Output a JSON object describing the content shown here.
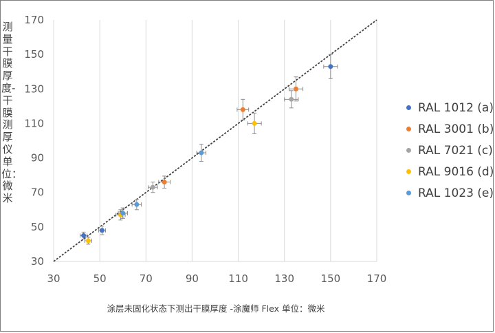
{
  "chart_data": {
    "type": "scatter",
    "title": "",
    "xlabel": "涂层未固化状态下测出干膜厚度 -涂魔师 Flex  单位：微米",
    "ylabel": "测量干膜厚度-干膜测厚仪 单位：微米",
    "xlim": [
      30,
      170
    ],
    "ylim": [
      30,
      170
    ],
    "xticks": [
      30,
      50,
      70,
      90,
      110,
      130,
      150,
      170
    ],
    "yticks": [
      30,
      50,
      70,
      90,
      110,
      130,
      150,
      170
    ],
    "grid": "vertical",
    "legend_position": "right",
    "reference_line": {
      "style": "dashed",
      "from": [
        30,
        30
      ],
      "to": [
        170,
        170
      ]
    },
    "series": [
      {
        "name": "RAL 1012 (a)",
        "color": "#4472c4",
        "points": [
          {
            "x": 43,
            "y": 45,
            "xerr": 1.5,
            "yerr": 2
          },
          {
            "x": 51,
            "y": 48,
            "xerr": 1.5,
            "yerr": 2.5
          },
          {
            "x": 150,
            "y": 143,
            "xerr": 3,
            "yerr": 7
          }
        ]
      },
      {
        "name": "RAL 3001 (b)",
        "color": "#ed7d31",
        "points": [
          {
            "x": 78,
            "y": 76,
            "xerr": 2.5,
            "yerr": 3.5
          },
          {
            "x": 112,
            "y": 118,
            "xerr": 2.5,
            "yerr": 6
          },
          {
            "x": 135,
            "y": 130,
            "xerr": 3,
            "yerr": 7
          }
        ]
      },
      {
        "name": "RAL 7021 (c)",
        "color": "#a5a5a5",
        "points": [
          {
            "x": 60,
            "y": 58,
            "xerr": 2,
            "yerr": 3
          },
          {
            "x": 73,
            "y": 73,
            "xerr": 2,
            "yerr": 3
          },
          {
            "x": 133,
            "y": 124,
            "xerr": 3,
            "yerr": 5
          }
        ]
      },
      {
        "name": "RAL 9016 (d)",
        "color": "#ffc000",
        "points": [
          {
            "x": 45,
            "y": 42,
            "xerr": 1.5,
            "yerr": 2
          },
          {
            "x": 59,
            "y": 57,
            "xerr": 2,
            "yerr": 3
          },
          {
            "x": 117,
            "y": 110,
            "xerr": 3,
            "yerr": 6
          }
        ]
      },
      {
        "name": "RAL 1023 (e)",
        "color": "#5b9bd5",
        "points": [
          {
            "x": 60,
            "y": 58,
            "xerr": 2,
            "yerr": 3
          },
          {
            "x": 66,
            "y": 63,
            "xerr": 2,
            "yerr": 3
          },
          {
            "x": 94,
            "y": 93,
            "xerr": 2,
            "yerr": 5
          }
        ]
      }
    ]
  }
}
